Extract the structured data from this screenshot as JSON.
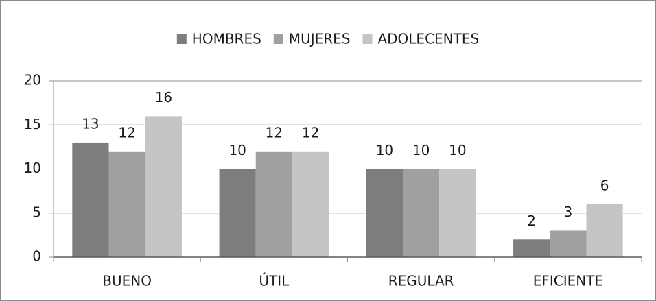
{
  "chart_data": {
    "type": "bar",
    "categories": [
      "BUENO",
      "ÚTIL",
      "REGULAR",
      "EFICIENTE"
    ],
    "series": [
      {
        "name": "HOMBRES",
        "color": "#7d7d7d",
        "values": [
          13,
          10,
          10,
          2
        ]
      },
      {
        "name": "MUJERES",
        "color": "#a0a0a0",
        "values": [
          12,
          12,
          10,
          3
        ]
      },
      {
        "name": "ADOLECENTES",
        "color": "#c5c5c5",
        "values": [
          16,
          12,
          10,
          6
        ]
      }
    ],
    "ylim": [
      0,
      20
    ],
    "yticks": [
      0,
      5,
      10,
      15,
      20
    ],
    "grid": true,
    "legend": "top"
  }
}
